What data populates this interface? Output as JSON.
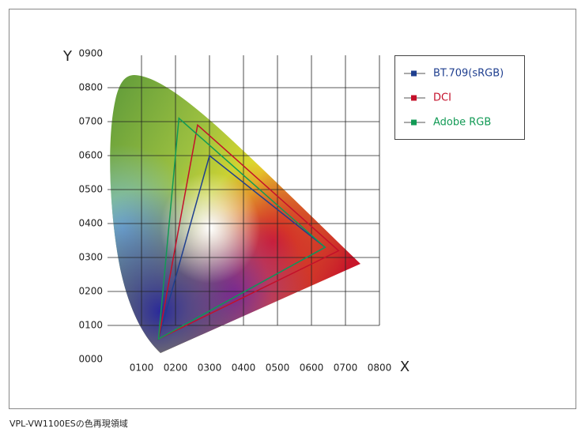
{
  "chart_data": {
    "type": "line",
    "x_label": "X",
    "y_label": "Y",
    "caption": "VPL-VW1100ESの色再現領域",
    "xlim": [
      0,
      0.8
    ],
    "ylim": [
      0,
      0.9
    ],
    "xticks": [
      {
        "value": 0.1,
        "label": "0100"
      },
      {
        "value": 0.2,
        "label": "0200"
      },
      {
        "value": 0.3,
        "label": "0300"
      },
      {
        "value": 0.4,
        "label": "0400"
      },
      {
        "value": 0.5,
        "label": "0500"
      },
      {
        "value": 0.6,
        "label": "0600"
      },
      {
        "value": 0.7,
        "label": "0700"
      },
      {
        "value": 0.8,
        "label": "0800"
      }
    ],
    "yticks": [
      {
        "value": 0,
        "label": "0000"
      },
      {
        "value": 0.1,
        "label": "0100"
      },
      {
        "value": 0.2,
        "label": "0200"
      },
      {
        "value": 0.3,
        "label": "0300"
      },
      {
        "value": 0.4,
        "label": "0400"
      },
      {
        "value": 0.5,
        "label": "0500"
      },
      {
        "value": 0.6,
        "label": "0600"
      },
      {
        "value": 0.7,
        "label": "0700"
      },
      {
        "value": 0.8,
        "label": "0800"
      },
      {
        "value": 0.9,
        "label": "0900"
      }
    ],
    "grid": true,
    "series": [
      {
        "name": "BT.709(sRGB)",
        "color": "#1f3f8f",
        "x": [
          0.64,
          0.3,
          0.15
        ],
        "values": [
          0.33,
          0.6,
          0.06
        ]
      },
      {
        "name": "DCI",
        "color": "#c4102a",
        "x": [
          0.68,
          0.265,
          0.15
        ],
        "values": [
          0.32,
          0.69,
          0.06
        ]
      },
      {
        "name": "Adobe RGB",
        "color": "#129a55",
        "x": [
          0.64,
          0.21,
          0.15
        ],
        "values": [
          0.33,
          0.71,
          0.06
        ]
      }
    ]
  }
}
